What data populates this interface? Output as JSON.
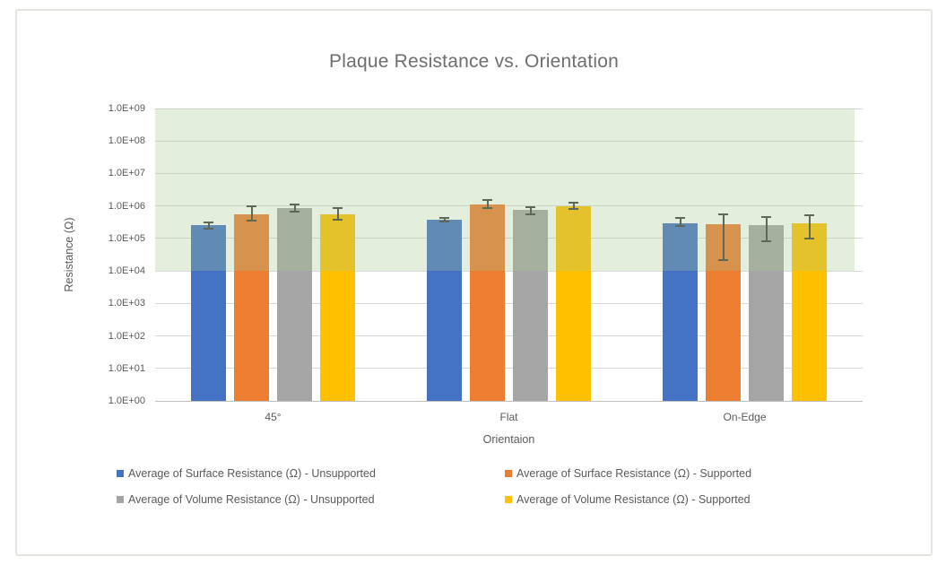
{
  "chart": {
    "title": "Plaque Resistance vs. Orientation"
  },
  "chart_data": {
    "type": "bar",
    "title": "Plaque Resistance vs. Orientation",
    "xlabel": "Orientaion",
    "ylabel": "Resistance (Ω)",
    "y_scale": "log",
    "ylim": [
      1,
      1000000000
    ],
    "y_tick_labels": [
      "1.0E+09",
      "1.0E+08",
      "1.0E+07",
      "1.0E+06",
      "1.0E+05",
      "1.0E+04",
      "1.0E+03",
      "1.0E+02",
      "1.0E+01",
      "1.0E+00"
    ],
    "categories": [
      "45°",
      "Flat",
      "On-Edge"
    ],
    "series": [
      {
        "name": "Average of Surface Resistance (Ω) - Unsupported",
        "color": "#4472C4",
        "values": [
          250000,
          370000,
          300000
        ],
        "error_hi": [
          320000,
          420000,
          420000
        ],
        "error_lo": [
          200000,
          330000,
          240000
        ]
      },
      {
        "name": "Average of Surface Resistance (Ω) - Supported",
        "color": "#ED7D31",
        "values": [
          560000,
          1100000,
          270000
        ],
        "error_hi": [
          980000,
          1550000,
          550000
        ],
        "error_lo": [
          350000,
          880000,
          22000
        ]
      },
      {
        "name": "Average of Volume Resistance (Ω) - Unsupported",
        "color": "#A5A5A5",
        "values": [
          850000,
          740000,
          260000
        ],
        "error_hi": [
          1100000,
          940000,
          470000
        ],
        "error_lo": [
          650000,
          540000,
          80000
        ]
      },
      {
        "name": "Average of Volume Resistance (Ω) - Supported",
        "color": "#FFC000",
        "values": [
          570000,
          950000,
          300000
        ],
        "error_hi": [
          870000,
          1300000,
          520000
        ],
        "error_lo": [
          380000,
          800000,
          100000
        ]
      }
    ],
    "highlight_band": {
      "from": 10000,
      "to": 1000000000,
      "color": "#A5C68E",
      "opacity": 0.3
    },
    "grid": true,
    "legend_position": "bottom",
    "text_color": "#595959",
    "gridline_color": "#d9d9d9"
  }
}
